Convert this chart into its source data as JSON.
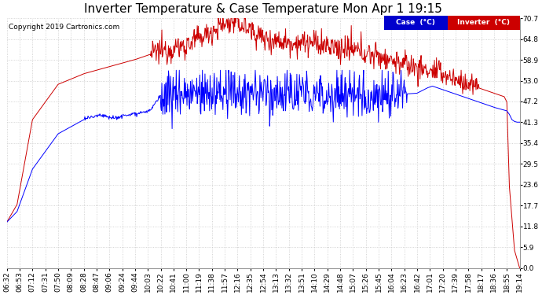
{
  "title": "Inverter Temperature & Case Temperature Mon Apr 1 19:15",
  "copyright": "Copyright 2019 Cartronics.com",
  "yticks": [
    0.0,
    5.9,
    11.8,
    17.7,
    23.6,
    29.5,
    35.4,
    41.3,
    47.2,
    53.0,
    58.9,
    64.8,
    70.7
  ],
  "xtick_labels": [
    "06:32",
    "06:53",
    "07:12",
    "07:31",
    "07:50",
    "08:09",
    "08:28",
    "08:47",
    "09:06",
    "09:24",
    "09:44",
    "10:03",
    "10:22",
    "10:41",
    "11:00",
    "11:19",
    "11:38",
    "11:57",
    "12:16",
    "12:35",
    "12:54",
    "13:13",
    "13:32",
    "13:51",
    "14:10",
    "14:29",
    "14:48",
    "15:07",
    "15:26",
    "15:45",
    "16:04",
    "16:23",
    "16:42",
    "17:01",
    "17:20",
    "17:39",
    "17:58",
    "18:17",
    "18:36",
    "18:55",
    "19:14"
  ],
  "legend_case_label": "Case  (°C)",
  "legend_inverter_label": "Inverter  (°C)",
  "case_color": "#0000ff",
  "inverter_color": "#cc0000",
  "bg_color": "#ffffff",
  "grid_color": "#c8c8c8",
  "title_fontsize": 11,
  "tick_fontsize": 6.5,
  "copyright_fontsize": 6.5,
  "legend_bg_case": "#0000cc",
  "legend_bg_inverter": "#cc0000",
  "ylim": [
    0.0,
    70.7
  ],
  "n_points": 1000
}
